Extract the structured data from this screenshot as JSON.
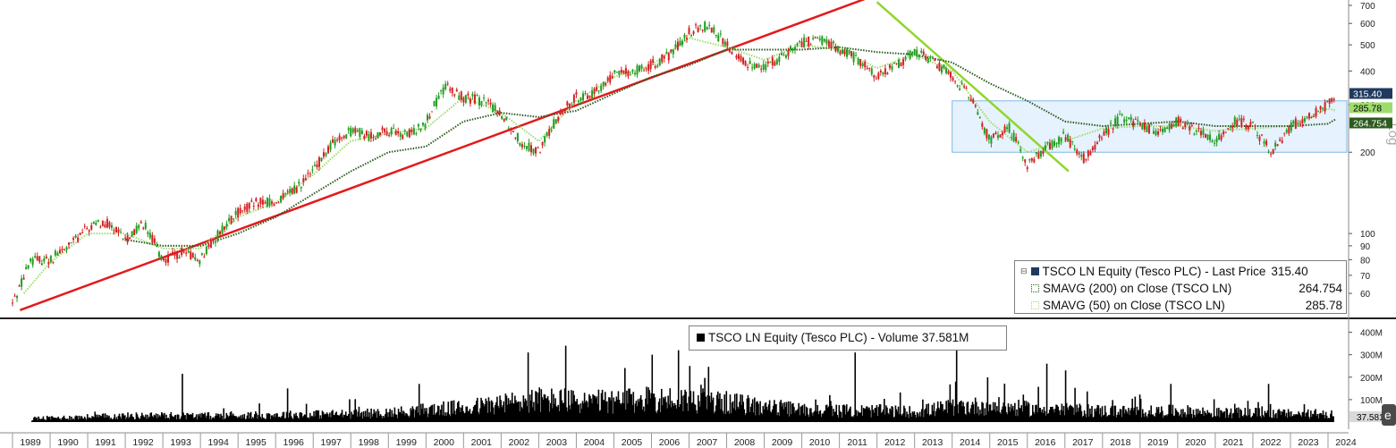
{
  "chart_data": [
    {
      "type": "line",
      "scale": "log",
      "ylim": [
        50,
        700
      ],
      "x_axis": [
        "1989",
        "1990",
        "1991",
        "1992",
        "1993",
        "1994",
        "1995",
        "1996",
        "1997",
        "1998",
        "1999",
        "2000",
        "2001",
        "2002",
        "2003",
        "2004",
        "2005",
        "2006",
        "2007",
        "2008",
        "2009",
        "2010",
        "2011",
        "2012",
        "2013",
        "2014",
        "2015",
        "2016",
        "2017",
        "2018",
        "2019",
        "2020",
        "2021",
        "2022",
        "2023",
        "2024"
      ],
      "yticks": [
        "700",
        "600",
        "500",
        "400",
        "300",
        "200",
        "100",
        "90",
        "80",
        "70",
        "60"
      ],
      "ylabel_side": "Log",
      "series": [
        {
          "name": "TSCO LN Equity (Tesco PLC) - Last Price",
          "last_value": "315.40",
          "color": "#1e9e1e",
          "points": [
            [
              1989.0,
              55
            ],
            [
              1989.5,
              80
            ],
            [
              1990.0,
              80
            ],
            [
              1990.5,
              90
            ],
            [
              1991.0,
              105
            ],
            [
              1991.5,
              110
            ],
            [
              1992.0,
              95
            ],
            [
              1992.5,
              110
            ],
            [
              1993.0,
              80
            ],
            [
              1993.5,
              85
            ],
            [
              1994.0,
              80
            ],
            [
              1994.5,
              100
            ],
            [
              1995.0,
              120
            ],
            [
              1995.5,
              130
            ],
            [
              1996.0,
              130
            ],
            [
              1996.5,
              145
            ],
            [
              1997.0,
              170
            ],
            [
              1997.5,
              215
            ],
            [
              1998.0,
              240
            ],
            [
              1998.5,
              230
            ],
            [
              1999.0,
              240
            ],
            [
              1999.5,
              230
            ],
            [
              2000.0,
              260
            ],
            [
              2000.5,
              350
            ],
            [
              2001.0,
              320
            ],
            [
              2001.5,
              310
            ],
            [
              2002.0,
              280
            ],
            [
              2002.5,
              220
            ],
            [
              2003.0,
              200
            ],
            [
              2003.5,
              270
            ],
            [
              2004.0,
              320
            ],
            [
              2004.5,
              330
            ],
            [
              2005.0,
              390
            ],
            [
              2005.5,
              400
            ],
            [
              2006.0,
              420
            ],
            [
              2006.5,
              460
            ],
            [
              2007.0,
              560
            ],
            [
              2007.5,
              590
            ],
            [
              2008.0,
              500
            ],
            [
              2008.5,
              430
            ],
            [
              2009.0,
              410
            ],
            [
              2009.5,
              460
            ],
            [
              2010.0,
              510
            ],
            [
              2010.5,
              520
            ],
            [
              2011.0,
              480
            ],
            [
              2011.5,
              440
            ],
            [
              2012.0,
              380
            ],
            [
              2012.5,
              420
            ],
            [
              2013.0,
              470
            ],
            [
              2013.5,
              440
            ],
            [
              2014.0,
              380
            ],
            [
              2014.5,
              320
            ],
            [
              2015.0,
              220
            ],
            [
              2015.5,
              250
            ],
            [
              2016.0,
              180
            ],
            [
              2016.5,
              210
            ],
            [
              2017.0,
              230
            ],
            [
              2017.5,
              190
            ],
            [
              2018.0,
              230
            ],
            [
              2018.5,
              270
            ],
            [
              2019.0,
              250
            ],
            [
              2019.5,
              240
            ],
            [
              2020.0,
              260
            ],
            [
              2020.5,
              240
            ],
            [
              2021.0,
              220
            ],
            [
              2021.5,
              260
            ],
            [
              2022.0,
              250
            ],
            [
              2022.5,
              200
            ],
            [
              2023.0,
              250
            ],
            [
              2023.5,
              270
            ],
            [
              2024.0,
              300
            ],
            [
              2024.2,
              315.4
            ]
          ]
        },
        {
          "name": "SMAVG (200)  on Close (TSCO LN)",
          "last_value": "264.754",
          "color": "#2d5a1e",
          "points": [
            [
              1992.0,
              95
            ],
            [
              1993.0,
              90
            ],
            [
              1994.0,
              90
            ],
            [
              1995.0,
              100
            ],
            [
              1996.0,
              115
            ],
            [
              1997.0,
              140
            ],
            [
              1998.0,
              170
            ],
            [
              1999.0,
              200
            ],
            [
              2000.0,
              210
            ],
            [
              2001.0,
              260
            ],
            [
              2002.0,
              280
            ],
            [
              2003.0,
              270
            ],
            [
              2004.0,
              285
            ],
            [
              2005.0,
              330
            ],
            [
              2006.0,
              380
            ],
            [
              2007.0,
              420
            ],
            [
              2008.0,
              480
            ],
            [
              2009.0,
              480
            ],
            [
              2010.0,
              480
            ],
            [
              2011.0,
              490
            ],
            [
              2012.0,
              470
            ],
            [
              2013.0,
              460
            ],
            [
              2014.0,
              430
            ],
            [
              2015.0,
              360
            ],
            [
              2016.0,
              310
            ],
            [
              2017.0,
              260
            ],
            [
              2018.0,
              250
            ],
            [
              2019.0,
              255
            ],
            [
              2020.0,
              260
            ],
            [
              2021.0,
              250
            ],
            [
              2022.0,
              250
            ],
            [
              2023.0,
              250
            ],
            [
              2024.0,
              255
            ],
            [
              2024.2,
              264.754
            ]
          ]
        },
        {
          "name": "SMAVG (50)  on Close (TSCO LN)",
          "last_value": "285.78",
          "color": "#9fdc6f",
          "points": [
            [
              1989.3,
              60
            ],
            [
              1990.0,
              78
            ],
            [
              1991.0,
              100
            ],
            [
              1992.0,
              100
            ],
            [
              1993.0,
              88
            ],
            [
              1994.0,
              88
            ],
            [
              1995.0,
              115
            ],
            [
              1996.0,
              130
            ],
            [
              1997.0,
              165
            ],
            [
              1998.0,
              220
            ],
            [
              1999.0,
              235
            ],
            [
              2000.0,
              245
            ],
            [
              2001.0,
              320
            ],
            [
              2002.0,
              280
            ],
            [
              2003.0,
              220
            ],
            [
              2004.0,
              310
            ],
            [
              2005.0,
              380
            ],
            [
              2006.0,
              420
            ],
            [
              2007.0,
              530
            ],
            [
              2008.0,
              490
            ],
            [
              2009.0,
              440
            ],
            [
              2010.0,
              500
            ],
            [
              2011.0,
              480
            ],
            [
              2012.0,
              410
            ],
            [
              2013.0,
              460
            ],
            [
              2014.0,
              400
            ],
            [
              2015.0,
              260
            ],
            [
              2016.0,
              200
            ],
            [
              2017.0,
              220
            ],
            [
              2018.0,
              245
            ],
            [
              2019.0,
              250
            ],
            [
              2020.0,
              250
            ],
            [
              2021.0,
              240
            ],
            [
              2022.0,
              245
            ],
            [
              2023.0,
              250
            ],
            [
              2024.0,
              290
            ],
            [
              2024.2,
              285.78
            ]
          ]
        }
      ],
      "annotations": {
        "support_trendline": {
          "color": "#e31a1c",
          "from": [
            1989.2,
            52
          ],
          "to": [
            2011.8,
            750
          ]
        },
        "downtrend_line": {
          "color": "#8fd62c",
          "from": [
            2012.0,
            720
          ],
          "to": [
            2017.1,
            170
          ]
        },
        "range_band": {
          "from": 2014.0,
          "to": 2024.5,
          "low": 200,
          "high": 310,
          "fill": "#e6f2fd",
          "stroke": "#7eb8e6"
        }
      },
      "price_labels": [
        {
          "text": "315.40",
          "value": 315.4,
          "bg": "#1f3a5f",
          "color": "#ffffff"
        },
        {
          "text": "285.78",
          "value": 285.78,
          "bg": "#9fdc6f",
          "color": "#000000"
        },
        {
          "text": "264.754",
          "value": 264.754,
          "bg": "#2d5a1e",
          "color": "#ffffff"
        }
      ],
      "legend": {
        "title": "TSCO LN Equity (Tesco PLC) - Last Price",
        "title_value": "315.40",
        "rows": [
          {
            "label": "SMAVG (200)  on Close (TSCO LN)",
            "value": "264.754"
          },
          {
            "label": "SMAVG (50)  on Close (TSCO LN)",
            "value": "285.78"
          }
        ]
      }
    },
    {
      "type": "bar",
      "ylim": [
        0,
        450
      ],
      "yticks": [
        "400M",
        "300M",
        "200M",
        "100M"
      ],
      "series_name": "TSCO LN Equity (Tesco PLC) - Volume",
      "last_value": "37.581M",
      "color": "#000000",
      "level_profile": [
        [
          1989.0,
          15
        ],
        [
          1990.0,
          20
        ],
        [
          1991.0,
          25
        ],
        [
          1992.0,
          30
        ],
        [
          1993.0,
          32
        ],
        [
          1994.0,
          30
        ],
        [
          1995.0,
          32
        ],
        [
          1996.0,
          35
        ],
        [
          1997.0,
          38
        ],
        [
          1998.0,
          40
        ],
        [
          1999.0,
          45
        ],
        [
          2000.0,
          60
        ],
        [
          2001.0,
          70
        ],
        [
          2002.0,
          90
        ],
        [
          2003.0,
          110
        ],
        [
          2004.0,
          100
        ],
        [
          2005.0,
          100
        ],
        [
          2006.0,
          110
        ],
        [
          2007.0,
          110
        ],
        [
          2008.0,
          95
        ],
        [
          2009.0,
          75
        ],
        [
          2010.0,
          60
        ],
        [
          2011.0,
          55
        ],
        [
          2012.0,
          55
        ],
        [
          2013.0,
          50
        ],
        [
          2014.0,
          75
        ],
        [
          2015.0,
          80
        ],
        [
          2016.0,
          65
        ],
        [
          2017.0,
          60
        ],
        [
          2018.0,
          55
        ],
        [
          2019.0,
          50
        ],
        [
          2020.0,
          55
        ],
        [
          2021.0,
          45
        ],
        [
          2022.0,
          45
        ],
        [
          2023.0,
          40
        ],
        [
          2024.0,
          38
        ]
      ],
      "spikes": [
        [
          1993.5,
          215
        ],
        [
          1996.3,
          150
        ],
        [
          1999.8,
          170
        ],
        [
          2002.7,
          310
        ],
        [
          2003.7,
          340
        ],
        [
          2006.0,
          300
        ],
        [
          2006.7,
          320
        ],
        [
          2007.0,
          250
        ],
        [
          2011.4,
          310
        ],
        [
          2014.1,
          330
        ],
        [
          2016.5,
          260
        ],
        [
          2017.0,
          230
        ],
        [
          2019.8,
          170
        ],
        [
          2022.4,
          170
        ]
      ]
    }
  ],
  "legend_vol": {
    "label": "TSCO LN Equity (Tesco PLC) - Volume",
    "value": "37.581M"
  },
  "bbg_tab_text": "e"
}
